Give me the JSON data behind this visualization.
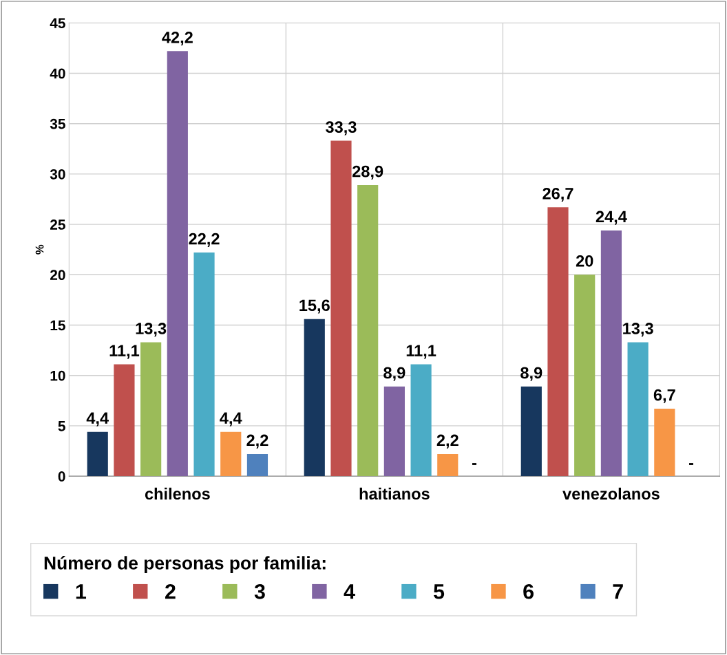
{
  "chart_data": {
    "type": "bar",
    "ylabel": "%",
    "legend_title": "Número de personas por familia:",
    "categories": [
      "chilenos",
      "haitianos",
      "venezolanos"
    ],
    "series": [
      {
        "name": "1",
        "color": "#17375e",
        "values": [
          4.4,
          15.6,
          8.9
        ],
        "value_labels": [
          "4,4",
          "15,6",
          "8,9"
        ]
      },
      {
        "name": "2",
        "color": "#c0504d",
        "values": [
          11.1,
          33.3,
          26.7
        ],
        "value_labels": [
          "11,1",
          "33,3",
          "26,7"
        ]
      },
      {
        "name": "3",
        "color": "#9bbb59",
        "values": [
          13.3,
          28.9,
          20
        ],
        "value_labels": [
          "13,3",
          "28,9",
          "20"
        ]
      },
      {
        "name": "4",
        "color": "#8064a2",
        "values": [
          42.2,
          8.9,
          24.4
        ],
        "value_labels": [
          "42,2",
          "8,9",
          "24,4"
        ]
      },
      {
        "name": "5",
        "color": "#4bacc6",
        "values": [
          22.2,
          11.1,
          13.3
        ],
        "value_labels": [
          "22,2",
          "11,1",
          "13,3"
        ]
      },
      {
        "name": "6",
        "color": "#f79646",
        "values": [
          4.4,
          2.2,
          6.7
        ],
        "value_labels": [
          "4,4",
          "2,2",
          "6,7"
        ]
      },
      {
        "name": "7",
        "color": "#4f81bd",
        "values": [
          2.2,
          null,
          null
        ],
        "value_labels": [
          "2,2",
          "-",
          "-"
        ]
      }
    ],
    "ylim": [
      0,
      45
    ],
    "yticks": [
      0,
      5,
      10,
      15,
      20,
      25,
      30,
      35,
      40,
      45
    ],
    "grid": true,
    "legend": "bottom"
  }
}
